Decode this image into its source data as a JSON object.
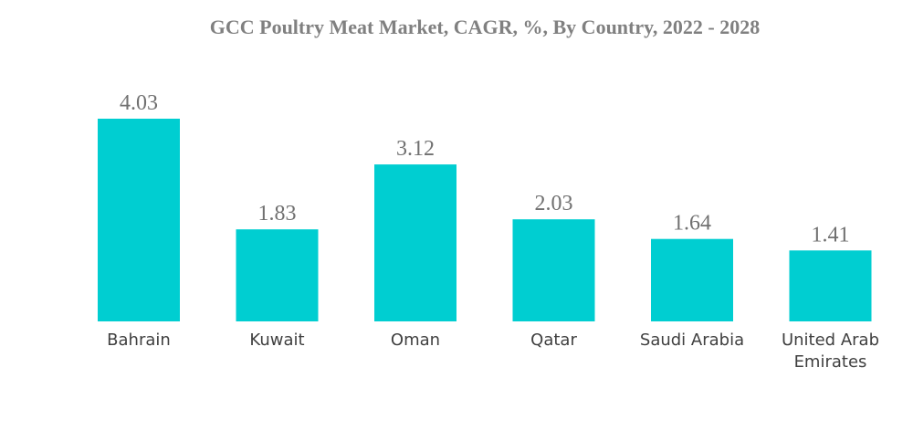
{
  "chart_data": {
    "type": "bar",
    "title": "GCC Poultry Meat Market, CAGR, %, By Country, 2022 - 2028",
    "xlabel": "",
    "ylabel": "",
    "categories": [
      "Bahrain",
      "Kuwait",
      "Oman",
      "Qatar",
      "Saudi Arabia",
      "United Arab Emirates"
    ],
    "values": [
      4.03,
      1.83,
      3.12,
      2.03,
      1.64,
      1.41
    ],
    "value_labels": [
      "4.03",
      "1.83",
      "3.12",
      "2.03",
      "1.64",
      "1.41"
    ],
    "ylim": [
      0,
      4.03
    ],
    "grid": false,
    "legend": "none",
    "bar_color": "#00CED1"
  }
}
